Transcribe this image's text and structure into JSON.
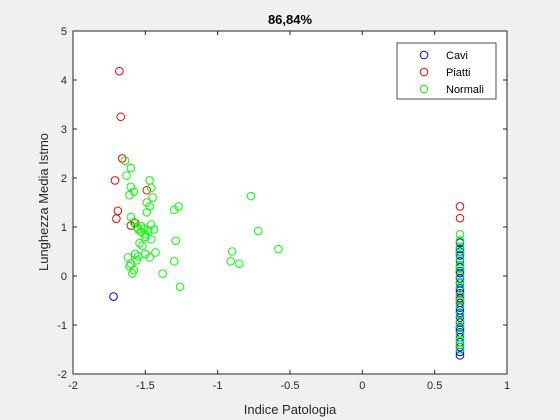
{
  "chart_data": {
    "type": "scatter",
    "title": "86,84%",
    "xlabel": "Indice Patologia",
    "ylabel": "Lunghezza Media Istmo",
    "xlim": [
      -2,
      1
    ],
    "ylim": [
      -2,
      5
    ],
    "xticks": [
      -2,
      -1.5,
      -1,
      -0.5,
      0,
      0.5,
      1
    ],
    "xtick_labels": [
      "-2",
      "-1.5",
      "-1",
      "-0.5",
      "0",
      "0.5",
      "1"
    ],
    "yticks": [
      -2,
      -1,
      0,
      1,
      2,
      3,
      4,
      5
    ],
    "ytick_labels": [
      "-2",
      "-1",
      "0",
      "1",
      "2",
      "3",
      "4",
      "5"
    ],
    "grid": false,
    "legend_position": "top-right",
    "series": [
      {
        "name": "Cavi",
        "color": "#0000ff",
        "points": [
          [
            -1.72,
            -0.42
          ],
          [
            0.675,
            0.68
          ],
          [
            0.675,
            0.55
          ],
          [
            0.675,
            0.42
          ],
          [
            0.675,
            0.3
          ],
          [
            0.675,
            0.18
          ],
          [
            0.675,
            0.06
          ],
          [
            0.675,
            -0.05
          ],
          [
            0.675,
            -0.15
          ],
          [
            0.675,
            -0.25
          ],
          [
            0.675,
            -0.35
          ],
          [
            0.675,
            -0.45
          ],
          [
            0.675,
            -0.55
          ],
          [
            0.675,
            -0.65
          ],
          [
            0.675,
            -0.75
          ],
          [
            0.675,
            -0.85
          ],
          [
            0.675,
            -0.95
          ],
          [
            0.675,
            -1.05
          ],
          [
            0.675,
            -1.15
          ],
          [
            0.675,
            -1.25
          ],
          [
            0.675,
            -1.35
          ],
          [
            0.675,
            -1.45
          ],
          [
            0.675,
            -1.55
          ],
          [
            0.675,
            -1.62
          ],
          [
            0.675,
            -1.1
          ],
          [
            0.675,
            -0.7
          ],
          [
            0.675,
            -0.3
          ],
          [
            0.675,
            0.1
          ],
          [
            0.675,
            0.5
          ]
        ]
      },
      {
        "name": "Piatti",
        "color": "#ff0000",
        "points": [
          [
            -1.68,
            4.18
          ],
          [
            -1.67,
            3.25
          ],
          [
            -1.66,
            2.4
          ],
          [
            -1.71,
            1.95
          ],
          [
            -1.49,
            1.75
          ],
          [
            -1.69,
            1.33
          ],
          [
            -1.7,
            1.17
          ],
          [
            -1.57,
            1.08
          ],
          [
            -1.6,
            1.03
          ],
          [
            0.675,
            1.42
          ],
          [
            0.675,
            1.18
          ],
          [
            0.675,
            -0.48
          ]
        ]
      },
      {
        "name": "Normali",
        "color": "#00ff00",
        "points": [
          [
            -1.64,
            2.35
          ],
          [
            -1.6,
            2.2
          ],
          [
            -1.63,
            2.05
          ],
          [
            -1.6,
            1.82
          ],
          [
            -1.58,
            1.72
          ],
          [
            -1.61,
            1.65
          ],
          [
            -1.47,
            1.95
          ],
          [
            -1.46,
            1.8
          ],
          [
            -1.45,
            1.6
          ],
          [
            -1.49,
            1.5
          ],
          [
            -1.47,
            1.42
          ],
          [
            -1.49,
            1.3
          ],
          [
            -1.27,
            1.42
          ],
          [
            -1.3,
            1.35
          ],
          [
            -0.77,
            1.63
          ],
          [
            -0.72,
            0.92
          ],
          [
            -0.58,
            0.55
          ],
          [
            -0.9,
            0.5
          ],
          [
            -0.91,
            0.3
          ],
          [
            -0.85,
            0.25
          ],
          [
            -1.29,
            0.72
          ],
          [
            -1.3,
            0.3
          ],
          [
            -1.38,
            0.05
          ],
          [
            -1.26,
            -0.22
          ],
          [
            -1.6,
            1.2
          ],
          [
            -1.58,
            1.1
          ],
          [
            -1.56,
            1.0
          ],
          [
            -1.55,
            0.95
          ],
          [
            -1.53,
            0.9
          ],
          [
            -1.5,
            0.85
          ],
          [
            -1.53,
            1.02
          ],
          [
            -1.51,
            0.97
          ],
          [
            -1.48,
            0.92
          ],
          [
            -1.46,
            1.05
          ],
          [
            -1.44,
            0.95
          ],
          [
            -1.46,
            0.75
          ],
          [
            -1.5,
            0.8
          ],
          [
            -1.52,
            0.62
          ],
          [
            -1.54,
            0.67
          ],
          [
            -1.57,
            0.45
          ],
          [
            -1.55,
            0.4
          ],
          [
            -1.5,
            0.45
          ],
          [
            -1.47,
            0.38
          ],
          [
            -1.43,
            0.48
          ],
          [
            -1.6,
            0.25
          ],
          [
            -1.61,
            0.2
          ],
          [
            -1.58,
            0.12
          ],
          [
            -1.59,
            0.05
          ],
          [
            -1.56,
            0.32
          ],
          [
            -1.62,
            0.38
          ],
          [
            0.675,
            0.85
          ],
          [
            0.675,
            0.72
          ],
          [
            0.675,
            0.6
          ],
          [
            0.675,
            0.48
          ],
          [
            0.675,
            0.35
          ],
          [
            0.675,
            0.22
          ],
          [
            0.675,
            0.15
          ],
          [
            0.675,
            0.0
          ],
          [
            0.675,
            -0.12
          ],
          [
            0.675,
            -0.22
          ],
          [
            0.675,
            -0.38
          ],
          [
            0.675,
            -0.5
          ],
          [
            0.675,
            -0.62
          ],
          [
            0.675,
            -0.78
          ],
          [
            0.675,
            -0.92
          ],
          [
            0.675,
            -1.02
          ],
          [
            0.675,
            -1.18
          ],
          [
            0.675,
            -1.3
          ],
          [
            0.675,
            -1.4
          ],
          [
            0.675,
            -1.5
          ]
        ]
      }
    ]
  }
}
